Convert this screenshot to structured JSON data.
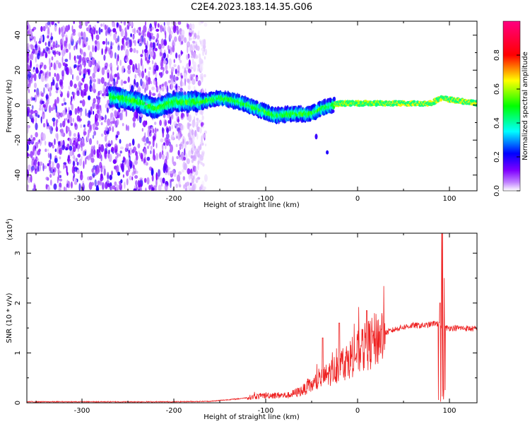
{
  "figure_title": "C2E4.2023.183.14.35.G06",
  "chart_data": [
    {
      "type": "heatmap",
      "xlabel": "Height of straight line (km)",
      "ylabel": "Frequency (Hz)",
      "xlim": [
        -360,
        130
      ],
      "ylim": [
        -49,
        48
      ],
      "x_ticks": [
        "-300",
        "-200",
        "-100",
        "0",
        "100"
      ],
      "y_ticks": [
        "-40",
        "-20",
        "0",
        "20",
        "40"
      ],
      "colorbar": {
        "label": "Normalized spectral amplitude",
        "range": [
          0,
          1
        ],
        "ticks": [
          "0.0",
          "0.2",
          "0.4",
          "0.6",
          "0.8"
        ],
        "colormap": "rainbow",
        "colors": [
          "#ffffff",
          "#8000ff",
          "#0000ff",
          "#00ffff",
          "#00ff00",
          "#ffff00",
          "#ff0000",
          "#ff0080"
        ]
      },
      "signal_track": [
        {
          "x": -270,
          "y": 5
        },
        {
          "x": -240,
          "y": 2
        },
        {
          "x": -220,
          "y": -2
        },
        {
          "x": -200,
          "y": 2
        },
        {
          "x": -170,
          "y": 2
        },
        {
          "x": -150,
          "y": 4
        },
        {
          "x": -130,
          "y": 2
        },
        {
          "x": -110,
          "y": -2
        },
        {
          "x": -90,
          "y": -6
        },
        {
          "x": -70,
          "y": -5
        },
        {
          "x": -50,
          "y": -5
        },
        {
          "x": -40,
          "y": -2
        },
        {
          "x": -20,
          "y": 1
        },
        {
          "x": 0,
          "y": 1
        },
        {
          "x": 40,
          "y": 1
        },
        {
          "x": 80,
          "y": 1
        },
        {
          "x": 90,
          "y": 4
        },
        {
          "x": 130,
          "y": 1
        }
      ],
      "noise_region_x": [
        -360,
        -165
      ]
    },
    {
      "type": "line",
      "xlabel": "Height of straight line (km)",
      "ylabel": "SNR (10 * v/v)",
      "y_multiplier": "(x10",
      "y_multiplier_exp": "4",
      "xlim": [
        -360,
        130
      ],
      "ylim": [
        0,
        3.4
      ],
      "x_ticks": [
        "-300",
        "-200",
        "-100",
        "0",
        "100"
      ],
      "y_ticks": [
        "0",
        "1",
        "2",
        "3"
      ],
      "color": "#ee2222",
      "series_envelope": [
        {
          "x": -360,
          "y": 0.02
        },
        {
          "x": -200,
          "y": 0.02
        },
        {
          "x": -160,
          "y": 0.03
        },
        {
          "x": -130,
          "y": 0.08
        },
        {
          "x": -100,
          "y": 0.15
        },
        {
          "x": -75,
          "y": 0.15
        },
        {
          "x": -60,
          "y": 0.25
        },
        {
          "x": -45,
          "y": 0.4
        },
        {
          "x": -30,
          "y": 0.6
        },
        {
          "x": -15,
          "y": 0.8
        },
        {
          "x": 0,
          "y": 1.0
        },
        {
          "x": 15,
          "y": 1.2
        },
        {
          "x": 30,
          "y": 1.4
        },
        {
          "x": 45,
          "y": 1.5
        },
        {
          "x": 60,
          "y": 1.55
        },
        {
          "x": 75,
          "y": 1.55
        },
        {
          "x": 85,
          "y": 1.6
        },
        {
          "x": 95,
          "y": 1.5
        },
        {
          "x": 110,
          "y": 1.5
        },
        {
          "x": 130,
          "y": 1.48
        }
      ],
      "peaks": [
        {
          "x": -38,
          "y": 1.3
        },
        {
          "x": -20,
          "y": 1.6
        },
        {
          "x": 10,
          "y": 1.85
        },
        {
          "x": 90,
          "y": 2.0
        },
        {
          "x": 92,
          "y": 3.4
        },
        {
          "x": 94,
          "y": 2.5
        }
      ]
    }
  ]
}
